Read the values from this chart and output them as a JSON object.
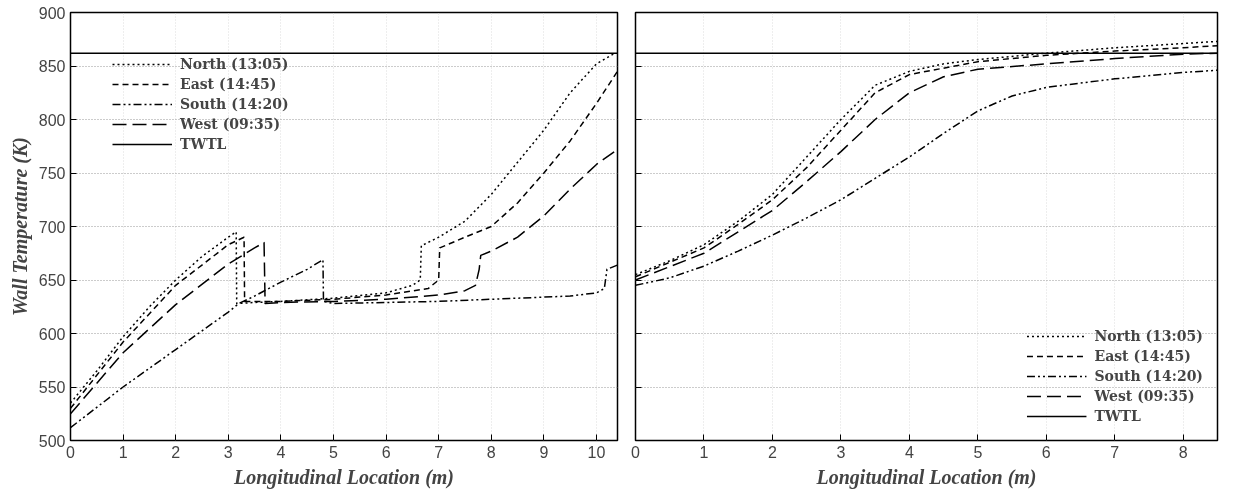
{
  "chart_data": [
    {
      "type": "line",
      "xlabel": "Longitudinal Location (m)",
      "ylabel": "Wall Temperature (K)",
      "xlim": [
        0,
        10.4
      ],
      "ylim": [
        500,
        900
      ],
      "xticks": [
        0,
        1,
        2,
        3,
        4,
        5,
        6,
        7,
        8,
        9,
        10
      ],
      "yticks": [
        500,
        550,
        600,
        650,
        700,
        750,
        800,
        850,
        900
      ],
      "grid": true,
      "legend": "top left",
      "marker": "none",
      "series": [
        {
          "name": "North (13:05)",
          "color": "#000000",
          "line_style": "dotted",
          "x": [
            0,
            0.5,
            1,
            1.5,
            2,
            2.5,
            3,
            3.15,
            3.16,
            3.5,
            4,
            5,
            6,
            6.5,
            6.65,
            6.67,
            7,
            7.5,
            8,
            8.5,
            9,
            9.5,
            10,
            10.35
          ],
          "values": [
            535,
            565,
            597,
            625,
            650,
            672,
            690,
            695,
            628,
            629,
            630,
            633,
            638,
            645,
            650,
            682,
            690,
            705,
            730,
            760,
            790,
            825,
            852,
            862
          ]
        },
        {
          "name": "East (14:45)",
          "color": "#000000",
          "line_style": "dashed",
          "x": [
            0,
            1,
            2,
            3,
            3.3,
            3.31,
            4,
            5,
            6,
            6.8,
            7,
            7.02,
            7.5,
            8,
            8.5,
            9,
            9.5,
            10,
            10.4
          ],
          "values": [
            530,
            592,
            645,
            683,
            690,
            630,
            630,
            632,
            636,
            642,
            650,
            680,
            690,
            700,
            722,
            750,
            780,
            815,
            845
          ]
        },
        {
          "name": "South (14:20)",
          "color": "#000000",
          "line_style": "dashdot",
          "x": [
            0,
            1,
            2,
            3,
            3.2,
            3.5,
            4,
            4.5,
            4.8,
            4.81,
            5,
            6,
            7,
            8,
            9,
            9.5,
            10,
            10.15,
            10.2,
            10.4
          ],
          "values": [
            512,
            550,
            585,
            620,
            628,
            635,
            648,
            660,
            669,
            630,
            628,
            629,
            630,
            632,
            634,
            635,
            638,
            642,
            660,
            664
          ]
        },
        {
          "name": "West (09:35)",
          "color": "#000000",
          "line_style": "longdash",
          "x": [
            0,
            1,
            2,
            3,
            3.5,
            3.68,
            3.7,
            4,
            5,
            6,
            7,
            7.5,
            7.7,
            7.77,
            7.8,
            8,
            8.5,
            9,
            9.5,
            10,
            10.4
          ],
          "values": [
            525,
            582,
            627,
            665,
            680,
            685,
            628,
            629,
            630,
            632,
            636,
            640,
            645,
            660,
            673,
            677,
            690,
            710,
            735,
            758,
            772
          ]
        },
        {
          "name": "TWTL",
          "color": "#000000",
          "line_style": "solid",
          "x": [
            0,
            10.4
          ],
          "values": [
            862,
            862
          ]
        }
      ]
    },
    {
      "type": "line",
      "xlabel": "Longitudinal Location (m)",
      "xlim": [
        0,
        8.5
      ],
      "ylim": [
        500,
        900
      ],
      "xticks": [
        0,
        1,
        2,
        3,
        4,
        5,
        6,
        7,
        8
      ],
      "yticks": [
        500,
        550,
        600,
        650,
        700,
        750,
        800,
        850,
        900
      ],
      "tick_labels": "x",
      "grid": true,
      "legend": "bottom right",
      "marker": "none",
      "series": [
        {
          "name": "North (13:05)",
          "color": "#000000",
          "line_style": "dotted",
          "x": [
            0,
            0.5,
            1,
            1.5,
            2,
            2.5,
            3,
            3.5,
            4,
            4.5,
            5,
            6,
            7,
            8,
            8.5
          ],
          "values": [
            655,
            668,
            683,
            705,
            730,
            765,
            800,
            832,
            845,
            852,
            856,
            862,
            867,
            871,
            873
          ]
        },
        {
          "name": "East (14:45)",
          "color": "#000000",
          "line_style": "dashed",
          "x": [
            0,
            1,
            1.5,
            2,
            2.5,
            3,
            3.5,
            4,
            5,
            6,
            7,
            8,
            8.5
          ],
          "values": [
            653,
            680,
            702,
            725,
            755,
            790,
            825,
            842,
            854,
            860,
            864,
            867,
            869
          ]
        },
        {
          "name": "South (14:20)",
          "color": "#000000",
          "line_style": "dashdot",
          "x": [
            0,
            0.5,
            1,
            1.5,
            2,
            2.5,
            3,
            3.5,
            4,
            4.5,
            5,
            5.5,
            6,
            7,
            8,
            8.5
          ],
          "values": [
            645,
            652,
            663,
            677,
            692,
            708,
            725,
            745,
            765,
            787,
            808,
            822,
            830,
            838,
            844,
            846
          ]
        },
        {
          "name": "West (09:35)",
          "color": "#000000",
          "line_style": "longdash",
          "x": [
            0,
            1,
            1.5,
            2,
            2.5,
            3,
            3.5,
            4,
            4.5,
            5,
            6,
            7,
            8,
            8.5
          ],
          "values": [
            650,
            675,
            695,
            715,
            742,
            770,
            800,
            825,
            840,
            847,
            852,
            857,
            861,
            862
          ]
        },
        {
          "name": "TWTL",
          "color": "#000000",
          "line_style": "solid",
          "x": [
            0,
            8.5
          ],
          "values": [
            862,
            862
          ]
        }
      ]
    }
  ]
}
